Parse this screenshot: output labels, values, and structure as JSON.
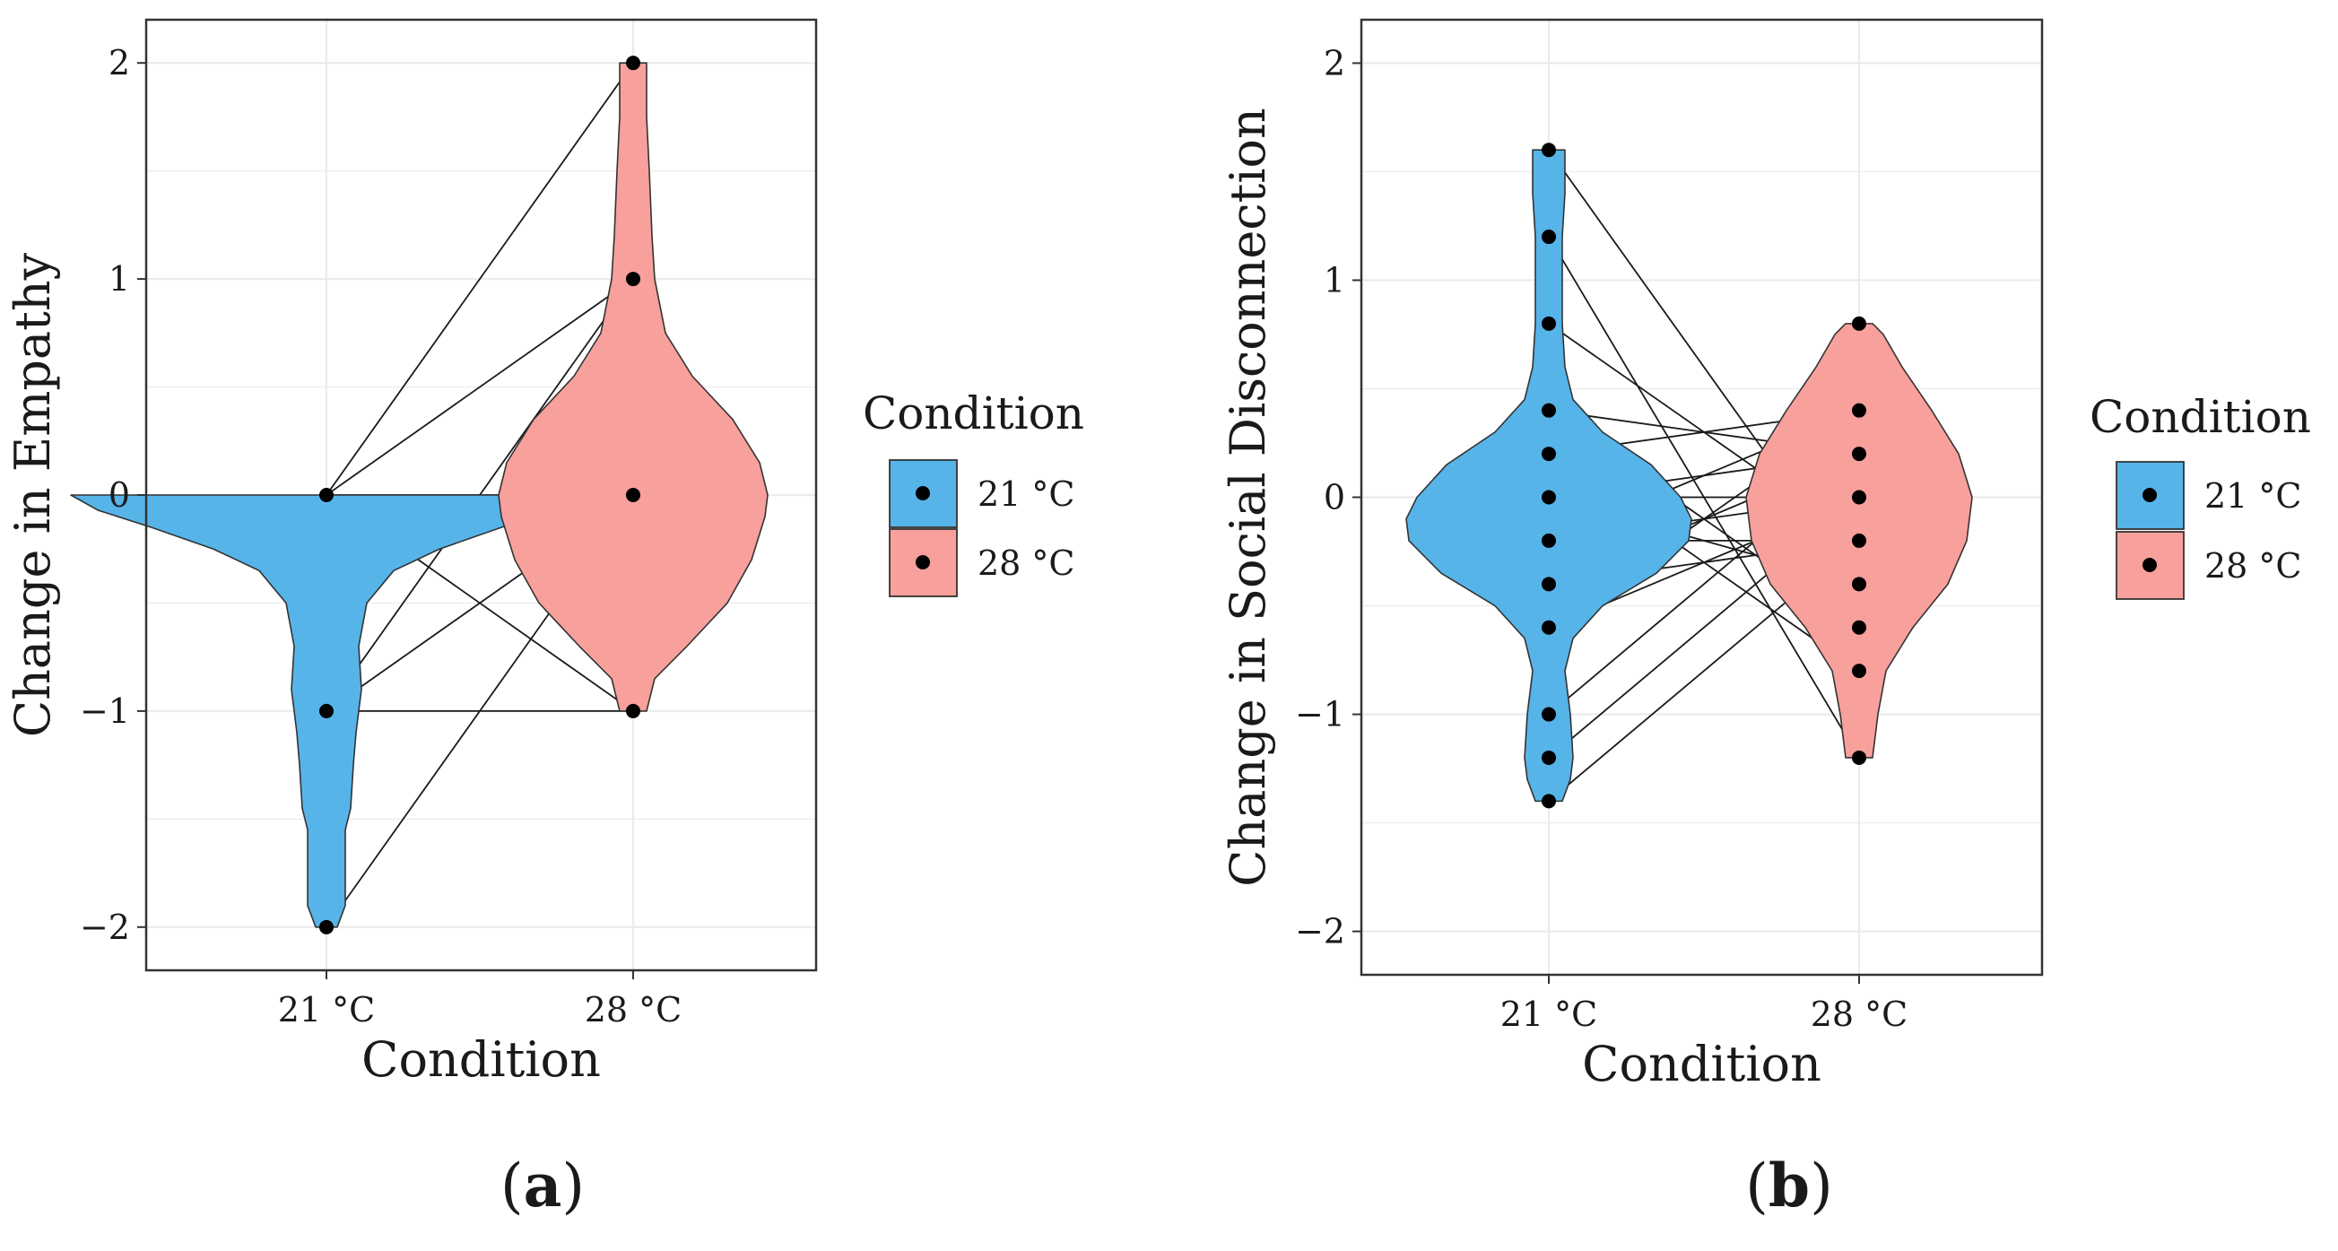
{
  "chart_data": [
    {
      "type": "violin",
      "panel_label": "(a)",
      "panel_letter": "a",
      "xlabel": "Condition",
      "ylabel": "Change in Empathy",
      "categories": [
        "21 °C",
        "28 °C"
      ],
      "ylim": [
        -2.2,
        2.2
      ],
      "yticks": [
        -2,
        -1,
        0,
        1,
        2
      ],
      "ytick_labels": [
        "−2",
        "−1",
        "0",
        "1",
        "2"
      ],
      "legend": {
        "title": "Condition",
        "entries": [
          "21 °C",
          "28 °C"
        ]
      },
      "colors": {
        "21 °C": "#56B4E9",
        "28 °C": "#F8A09C"
      },
      "density": {
        "21 °C": [
          [
            -2.0,
            0.04
          ],
          [
            -1.9,
            0.07
          ],
          [
            -1.7,
            0.07
          ],
          [
            -1.55,
            0.07
          ],
          [
            -1.45,
            0.09
          ],
          [
            -1.25,
            0.1
          ],
          [
            -1.1,
            0.11
          ],
          [
            -1.0,
            0.12
          ],
          [
            -0.9,
            0.13
          ],
          [
            -0.7,
            0.12
          ],
          [
            -0.5,
            0.15
          ],
          [
            -0.35,
            0.25
          ],
          [
            -0.25,
            0.42
          ],
          [
            -0.15,
            0.65
          ],
          [
            -0.07,
            0.85
          ],
          [
            0.0,
            0.95
          ]
        ],
        "28 °C": [
          [
            -1.0,
            0.05
          ],
          [
            -0.85,
            0.08
          ],
          [
            -0.7,
            0.2
          ],
          [
            -0.5,
            0.35
          ],
          [
            -0.3,
            0.44
          ],
          [
            -0.1,
            0.49
          ],
          [
            0.0,
            0.5
          ],
          [
            0.15,
            0.47
          ],
          [
            0.35,
            0.37
          ],
          [
            0.55,
            0.22
          ],
          [
            0.75,
            0.12
          ],
          [
            1.0,
            0.08
          ],
          [
            1.2,
            0.07
          ],
          [
            1.5,
            0.06
          ],
          [
            1.75,
            0.05
          ],
          [
            2.0,
            0.05
          ]
        ]
      },
      "points": {
        "21 °C": [
          0,
          -1,
          -2
        ],
        "28 °C": [
          2,
          1,
          0,
          -1
        ]
      },
      "pairs": [
        [
          0,
          2
        ],
        [
          0,
          1
        ],
        [
          0,
          0
        ],
        [
          0,
          -1
        ],
        [
          -1,
          1
        ],
        [
          -1,
          0
        ],
        [
          -1,
          -1
        ],
        [
          -2,
          0
        ]
      ]
    },
    {
      "type": "violin",
      "panel_label": "(b)",
      "panel_letter": "b",
      "xlabel": "Condition",
      "ylabel": "Change in Social Disconnection",
      "categories": [
        "21 °C",
        "28 °C"
      ],
      "ylim": [
        -2.2,
        2.2
      ],
      "yticks": [
        -2,
        -1,
        0,
        1,
        2
      ],
      "ytick_labels": [
        "−2",
        "−1",
        "0",
        "1",
        "2"
      ],
      "legend": {
        "title": "Condition",
        "entries": [
          "21 °C",
          "28 °C"
        ]
      },
      "colors": {
        "21 °C": "#56B4E9",
        "28 °C": "#F8A09C"
      },
      "density": {
        "21 °C": [
          [
            -1.4,
            0.05
          ],
          [
            -1.3,
            0.08
          ],
          [
            -1.2,
            0.09
          ],
          [
            -1.0,
            0.08
          ],
          [
            -0.8,
            0.06
          ],
          [
            -0.65,
            0.09
          ],
          [
            -0.5,
            0.2
          ],
          [
            -0.35,
            0.4
          ],
          [
            -0.2,
            0.52
          ],
          [
            -0.1,
            0.53
          ],
          [
            0.0,
            0.49
          ],
          [
            0.15,
            0.38
          ],
          [
            0.3,
            0.2
          ],
          [
            0.45,
            0.09
          ],
          [
            0.6,
            0.06
          ],
          [
            0.8,
            0.05
          ],
          [
            1.0,
            0.05
          ],
          [
            1.2,
            0.05
          ],
          [
            1.4,
            0.06
          ],
          [
            1.6,
            0.06
          ]
        ],
        "28 °C": [
          [
            -1.2,
            0.05
          ],
          [
            -1.0,
            0.07
          ],
          [
            -0.8,
            0.1
          ],
          [
            -0.6,
            0.2
          ],
          [
            -0.4,
            0.33
          ],
          [
            -0.2,
            0.4
          ],
          [
            0.0,
            0.42
          ],
          [
            0.2,
            0.37
          ],
          [
            0.4,
            0.27
          ],
          [
            0.6,
            0.16
          ],
          [
            0.75,
            0.09
          ],
          [
            0.8,
            0.05
          ]
        ]
      },
      "points": {
        "21 °C": [
          1.6,
          1.2,
          0.8,
          0.4,
          0.2,
          0,
          -0.2,
          -0.4,
          -0.6,
          -1.0,
          -1.2,
          -1.4
        ],
        "28 °C": [
          0.8,
          0.4,
          0.2,
          0,
          -0.2,
          -0.4,
          -0.6,
          -0.8,
          -1.2
        ]
      },
      "pairs": [
        [
          1.6,
          -0.4
        ],
        [
          1.2,
          -1.2
        ],
        [
          0.8,
          -0.2
        ],
        [
          0.4,
          -0.6
        ],
        [
          0.4,
          0.2
        ],
        [
          0.2,
          -0.8
        ],
        [
          0.2,
          0.4
        ],
        [
          0,
          0.2
        ],
        [
          0,
          -0.4
        ],
        [
          0,
          0
        ],
        [
          -0.2,
          0.4
        ],
        [
          -0.2,
          -0.2
        ],
        [
          -0.2,
          0
        ],
        [
          -0.4,
          0.2
        ],
        [
          -0.4,
          -0.2
        ],
        [
          -0.6,
          0
        ],
        [
          -0.6,
          0.4
        ],
        [
          -1.0,
          0.2
        ],
        [
          -1.2,
          0
        ],
        [
          -1.4,
          -0.2
        ]
      ]
    }
  ]
}
